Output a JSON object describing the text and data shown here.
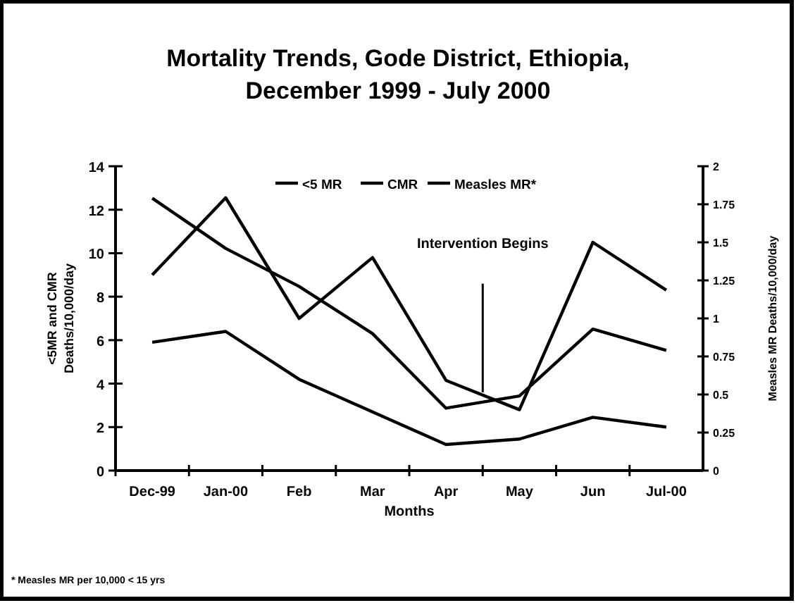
{
  "chart_data": {
    "type": "line",
    "title": "Mortality Trends, Gode District, Ethiopia,\nDecember 1999 - July 2000",
    "xlabel": "Months",
    "ylabel": "<5MR and CMR\nDeaths/10,000/day",
    "y2label": "Measles MR Deaths/10,000/day",
    "categories": [
      "Dec-99",
      "Jan-00",
      "Feb",
      "Mar",
      "Apr",
      "May",
      "Jun",
      "Jul-00"
    ],
    "series": [
      {
        "name": "<5 MR",
        "color": "#000000",
        "values": [
          9.0,
          12.55,
          7.0,
          9.8,
          4.15,
          2.8,
          10.5,
          8.3
        ]
      },
      {
        "name": "CMR",
        "color": "#000000",
        "values": [
          5.9,
          6.4,
          4.2,
          2.7,
          1.2,
          1.45,
          2.45,
          2.0
        ]
      },
      {
        "name": "Measles MR*",
        "color": "#000000",
        "axis": "y2",
        "values": [
          1.79,
          1.46,
          1.21,
          0.9,
          0.41,
          0.49,
          0.93,
          0.79
        ]
      }
    ],
    "ylim": [
      0,
      14
    ],
    "yticks": [
      0,
      2,
      4,
      6,
      8,
      10,
      12,
      14
    ],
    "y2lim": [
      0,
      2
    ],
    "y2ticks": [
      0,
      0.25,
      0.5,
      0.75,
      1,
      1.25,
      1.5,
      1.75,
      2
    ],
    "marker": "none",
    "line_style": "solid",
    "legend": "top",
    "grid": false,
    "annotations": [
      "Intervention Begins",
      "* Measles MR  per 10,000 < 15 yrs"
    ]
  }
}
